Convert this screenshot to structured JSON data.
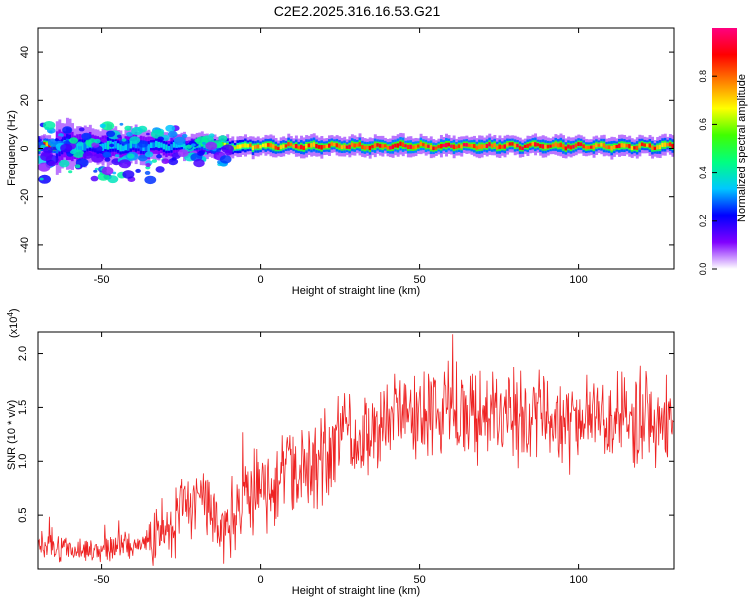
{
  "title": "C2E2.2025.316.16.53.G21",
  "chart_data": [
    {
      "type": "heatmap",
      "xlabel": "Height of straight line (km)",
      "ylabel": "Frequency (Hz)",
      "xlim": [
        -70,
        130
      ],
      "ylim": [
        -50,
        50
      ],
      "xticks": [
        -50,
        0,
        50,
        100
      ],
      "yticks": [
        -40,
        -20,
        0,
        20,
        40
      ],
      "colorbar": {
        "label": "Normalized spectral amplitude",
        "range": [
          0,
          1
        ],
        "ticks": [
          "0.0",
          "0.2",
          "0.4",
          "0.6",
          "0.8"
        ],
        "colormap": [
          "#ffffff",
          "#8000ff",
          "#0000ff",
          "#00c8ff",
          "#00ff80",
          "#40ff00",
          "#ffff00",
          "#ff8000",
          "#ff0000",
          "#ff0080"
        ]
      },
      "band": {
        "center_frequency_hz": 1,
        "ridge": [
          {
            "x": -65,
            "width": 12,
            "amplitude": 0.35
          },
          {
            "x": -50,
            "width": 10,
            "amplitude": 0.4
          },
          {
            "x": -35,
            "width": 8,
            "amplitude": 0.35
          },
          {
            "x": -20,
            "width": 6,
            "amplitude": 0.45
          },
          {
            "x": -10,
            "width": 5,
            "amplitude": 0.7
          },
          {
            "x": 0,
            "width": 5,
            "amplitude": 0.9
          },
          {
            "x": 25,
            "width": 5,
            "amplitude": 0.95
          },
          {
            "x": 50,
            "width": 5,
            "amplitude": 1.0
          },
          {
            "x": 75,
            "width": 5,
            "amplitude": 0.95
          },
          {
            "x": 100,
            "width": 5,
            "amplitude": 0.95
          },
          {
            "x": 130,
            "width": 5,
            "amplitude": 0.9
          }
        ]
      }
    },
    {
      "type": "line",
      "xlabel": "Height of straight line (km)",
      "ylabel": "SNR (10 * v/v)",
      "scale_label": "(x10",
      "scale_exponent": "4",
      "xlim": [
        -70,
        130
      ],
      "ylim": [
        0,
        2.2
      ],
      "xticks": [
        -50,
        0,
        50,
        100
      ],
      "yticks": [
        "0.5",
        "1.0",
        "1.5",
        "2.0"
      ],
      "color": "#ee2222",
      "trend": {
        "x": [
          -70,
          -60,
          -50,
          -40,
          -30,
          -25,
          -20,
          -15,
          -12,
          -10,
          -5,
          0,
          5,
          10,
          20,
          30,
          40,
          50,
          60,
          70,
          80,
          90,
          100,
          110,
          120,
          130
        ],
        "y": [
          0.22,
          0.18,
          0.17,
          0.22,
          0.32,
          0.55,
          0.65,
          0.55,
          0.35,
          0.45,
          0.65,
          0.75,
          0.85,
          0.9,
          1.05,
          1.25,
          1.38,
          1.42,
          1.45,
          1.42,
          1.4,
          1.38,
          1.37,
          1.38,
          1.38,
          1.36
        ]
      },
      "noise_amplitude": [
        0.1,
        0.35
      ]
    }
  ]
}
